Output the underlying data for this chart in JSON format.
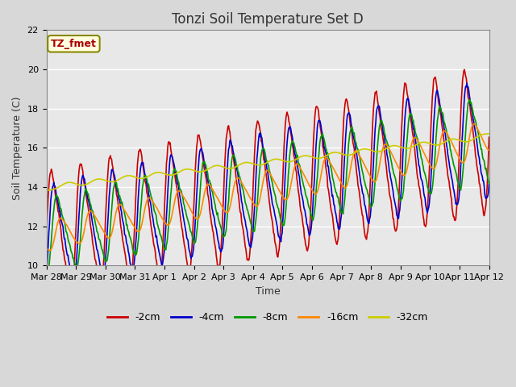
{
  "title": "Tonzi Soil Temperature Set D",
  "xlabel": "Time",
  "ylabel": "Soil Temperature (C)",
  "ylim": [
    10,
    22
  ],
  "xlim": [
    0,
    15
  ],
  "tick_labels": [
    "Mar 28",
    "Mar 29",
    "Mar 30",
    "Mar 31",
    "Apr 1",
    "Apr 2",
    "Apr 3",
    "Apr 4",
    "Apr 5",
    "Apr 6",
    "Apr 7",
    "Apr 8",
    "Apr 9",
    "Apr 10",
    "Apr 11",
    "Apr 12"
  ],
  "series_colors": [
    "#cc0000",
    "#0000cc",
    "#009900",
    "#ff8800",
    "#cccc00"
  ],
  "series_labels": [
    "-2cm",
    "-4cm",
    "-8cm",
    "-16cm",
    "-32cm"
  ],
  "legend_label": "TZ_fmet",
  "bg_color": "#e8e8e8",
  "fig_bg": "#d8d8d8",
  "title_fontsize": 12,
  "axis_fontsize": 9,
  "tick_fontsize": 8,
  "lw": 1.2
}
